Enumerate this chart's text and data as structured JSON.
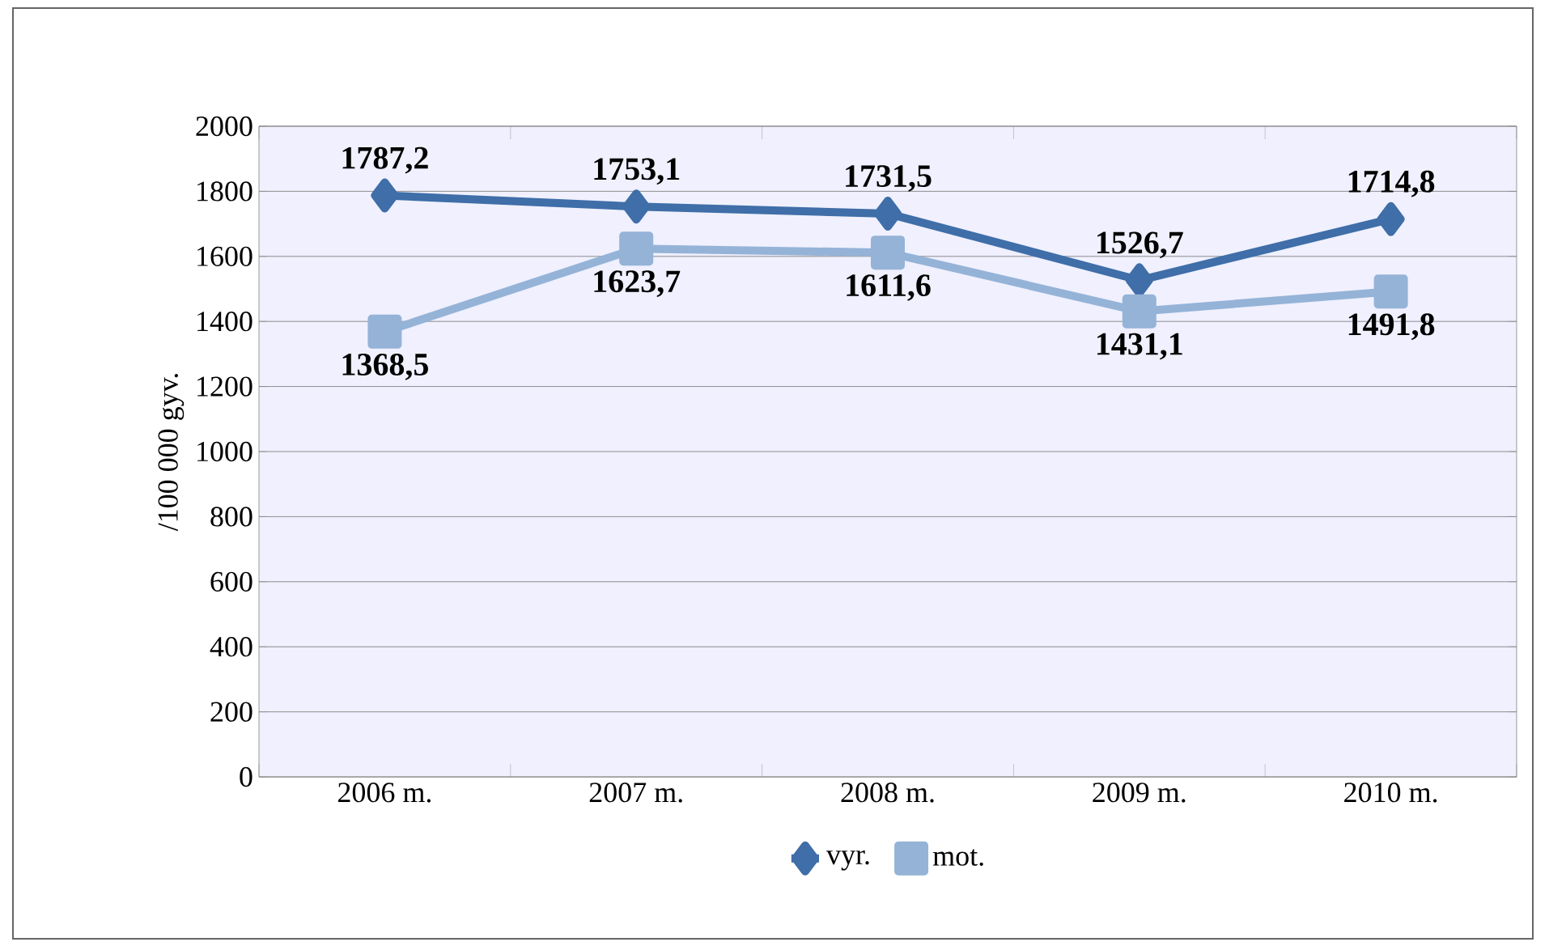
{
  "chart_data": {
    "type": "line",
    "ylabel": "/100 000 gyv.",
    "categories": [
      "2006 m.",
      "2007 m.",
      "2008 m.",
      "2009 m.",
      "2010 m."
    ],
    "series": [
      {
        "name": "vyr.",
        "color": "#3f6ea8",
        "marker": "diamond",
        "values": [
          1787.2,
          1753.1,
          1731.5,
          1526.7,
          1714.8
        ],
        "value_labels": [
          "1787,2",
          "1753,1",
          "1731,5",
          "1526,7",
          "1714,8"
        ]
      },
      {
        "name": "mot.",
        "color": "#95b3d7",
        "marker": "square",
        "values": [
          1368.5,
          1623.7,
          1611.6,
          1431.1,
          1491.8
        ],
        "value_labels": [
          "1368,5",
          "1623,7",
          "1611,6",
          "1431,1",
          "1491,8"
        ]
      }
    ],
    "ylim": [
      0,
      2000
    ],
    "yticks": [
      0,
      200,
      400,
      600,
      800,
      1000,
      1200,
      1400,
      1600,
      1800,
      2000
    ],
    "grid": "y",
    "legend": "bottom"
  }
}
